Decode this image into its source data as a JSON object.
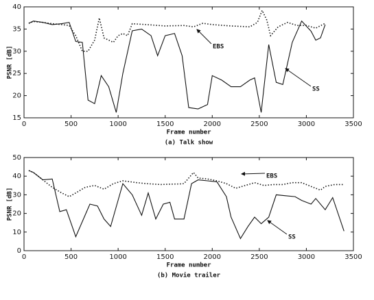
{
  "chart_data": [
    {
      "type": "line",
      "xlabel": "Frame number",
      "caption": "(a) Talk show",
      "ylabel": "PSNR [dB]",
      "xlim": [
        0,
        3500
      ],
      "ylim": [
        15,
        40
      ],
      "xticks": [
        0,
        500,
        1000,
        1500,
        2000,
        2500,
        3000,
        3500
      ],
      "yticks": [
        15,
        20,
        25,
        30,
        35,
        40
      ],
      "annotations": [
        "EBS",
        "SS"
      ],
      "series": [
        {
          "name": "EBS",
          "color": "#111111",
          "linestyle": "dotted",
          "x": [
            50,
            100,
            200,
            300,
            400,
            480,
            550,
            620,
            680,
            750,
            800,
            850,
            950,
            1000,
            1050,
            1100,
            1150,
            1300,
            1500,
            1700,
            1800,
            1900,
            2000,
            2200,
            2400,
            2480,
            2530,
            2580,
            2620,
            2700,
            2800,
            2900,
            3000,
            3100,
            3200
          ],
          "values": [
            36.3,
            36.7,
            36.5,
            36.2,
            36.0,
            35.8,
            33.5,
            30,
            30,
            32.5,
            37.5,
            33,
            32,
            33.5,
            34,
            33.5,
            36.2,
            36,
            35.7,
            35.8,
            35.5,
            36.3,
            36,
            35.7,
            35.5,
            36.5,
            39.2,
            37,
            33.5,
            35.5,
            36.5,
            35.8,
            35.8,
            35.2,
            36.3
          ]
        },
        {
          "name": "SS",
          "color": "#111111",
          "linestyle": "solid",
          "x": [
            50,
            100,
            200,
            300,
            400,
            480,
            550,
            620,
            680,
            750,
            820,
            900,
            980,
            1050,
            1150,
            1250,
            1350,
            1420,
            1500,
            1600,
            1680,
            1750,
            1850,
            1950,
            2000,
            2100,
            2200,
            2300,
            2400,
            2450,
            2520,
            2600,
            2680,
            2750,
            2850,
            2950,
            3050,
            3100,
            3150,
            3200
          ],
          "values": [
            36.3,
            36.8,
            36.5,
            36.0,
            36.2,
            36.5,
            32.2,
            32.0,
            19,
            18.2,
            24.5,
            22,
            16.2,
            25,
            34.6,
            35,
            33.5,
            29,
            33.5,
            34,
            29,
            17.3,
            17,
            18,
            24.5,
            23.5,
            22,
            22,
            23.5,
            24,
            16.2,
            31.5,
            23,
            22.5,
            32,
            36.8,
            34.5,
            32.5,
            33,
            36
          ]
        }
      ]
    },
    {
      "type": "line",
      "xlabel": "Frame number",
      "caption": "(b) Movie trailer",
      "ylabel": "PSNR [dB]",
      "xlim": [
        0,
        3500
      ],
      "ylim": [
        0,
        50
      ],
      "xticks": [
        0,
        500,
        1000,
        1500,
        2000,
        2500,
        3000,
        3500
      ],
      "yticks": [
        0,
        10,
        20,
        30,
        40,
        50
      ],
      "annotations": [
        "EBS",
        "SS"
      ],
      "series": [
        {
          "name": "EBS",
          "color": "#111111",
          "linestyle": "dotted",
          "x": [
            50,
            100,
            200,
            300,
            400,
            480,
            550,
            650,
            750,
            850,
            950,
            1050,
            1200,
            1300,
            1450,
            1550,
            1650,
            1700,
            1800,
            1850,
            1950,
            2050,
            2150,
            2250,
            2350,
            2450,
            2550,
            2650,
            2750,
            2850,
            2950,
            3050,
            3150,
            3200,
            3300,
            3400
          ],
          "values": [
            43,
            42,
            38,
            34,
            31,
            29,
            31,
            34,
            35,
            33,
            36,
            37.5,
            36.5,
            36,
            35.5,
            35.7,
            35.8,
            36,
            42,
            39,
            38.5,
            37.5,
            36,
            33.5,
            35,
            36.5,
            35,
            35.5,
            35.5,
            36.5,
            36.5,
            34.5,
            32.5,
            34.5,
            35.5,
            35.5
          ]
        },
        {
          "name": "SS",
          "color": "#111111",
          "linestyle": "solid",
          "x": [
            50,
            100,
            150,
            200,
            300,
            380,
            450,
            550,
            700,
            780,
            850,
            920,
            1050,
            1150,
            1250,
            1320,
            1400,
            1480,
            1550,
            1600,
            1700,
            1780,
            1850,
            1950,
            2050,
            2150,
            2200,
            2300,
            2380,
            2450,
            2520,
            2600,
            2680,
            2780,
            2880,
            2950,
            3050,
            3100,
            3200,
            3280,
            3400
          ],
          "values": [
            43,
            42,
            40,
            38,
            38.5,
            21,
            22,
            7.5,
            25,
            24,
            17,
            13,
            36,
            30,
            19,
            31,
            17,
            25,
            26,
            17,
            17,
            36,
            38,
            37.5,
            37,
            29,
            18,
            6.5,
            13,
            18,
            14.5,
            18,
            30,
            29.5,
            29,
            27,
            25,
            28,
            22,
            28.5,
            10.5
          ]
        }
      ]
    }
  ]
}
